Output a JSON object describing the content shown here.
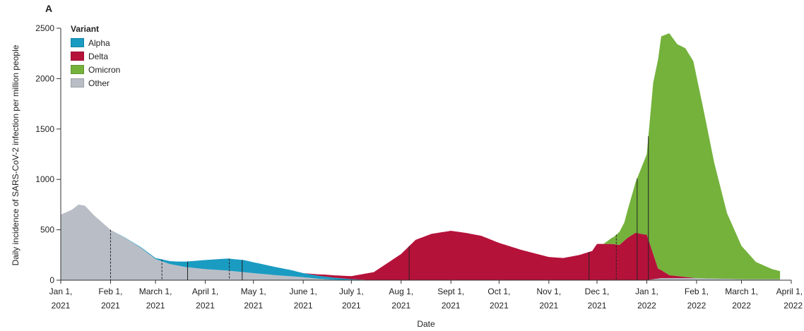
{
  "panel_label": "A",
  "chart_data": {
    "type": "area",
    "title": "",
    "xlabel": "Date",
    "ylabel": "Daily incidence of SARS-CoV-2 infection per million people",
    "ylim": [
      0,
      2500
    ],
    "yticks": [
      0,
      500,
      1000,
      1500,
      2000,
      2500
    ],
    "xlim": [
      "2021-01-01",
      "2022-04-01"
    ],
    "xticks": [
      {
        "date": "2021-01-01",
        "line1": "Jan 1,",
        "line2": "2021"
      },
      {
        "date": "2021-02-01",
        "line1": "Feb 1,",
        "line2": "2021"
      },
      {
        "date": "2021-03-01",
        "line1": "March 1,",
        "line2": "2021"
      },
      {
        "date": "2021-04-01",
        "line1": "April 1,",
        "line2": "2021"
      },
      {
        "date": "2021-05-01",
        "line1": "May 1,",
        "line2": "2021"
      },
      {
        "date": "2021-06-01",
        "line1": "June 1,",
        "line2": "2021"
      },
      {
        "date": "2021-07-01",
        "line1": "July 1,",
        "line2": "2021"
      },
      {
        "date": "2021-08-01",
        "line1": "Aug 1,",
        "line2": "2021"
      },
      {
        "date": "2021-09-01",
        "line1": "Sept 1,",
        "line2": "2021"
      },
      {
        "date": "2021-10-01",
        "line1": "Oct 1,",
        "line2": "2021"
      },
      {
        "date": "2021-11-01",
        "line1": "Nov 1,",
        "line2": "2021"
      },
      {
        "date": "2021-12-01",
        "line1": "Dec 1,",
        "line2": "2021"
      },
      {
        "date": "2022-01-01",
        "line1": "Jan 1,",
        "line2": "2022"
      },
      {
        "date": "2022-02-01",
        "line1": "Feb 1,",
        "line2": "2022"
      },
      {
        "date": "2022-03-01",
        "line1": "March 1,",
        "line2": "2022"
      },
      {
        "date": "2022-04-01",
        "line1": "April 1,",
        "line2": "2022"
      }
    ],
    "legend": {
      "title": "Variant",
      "placement": "top-left"
    },
    "series": [
      {
        "name": "Other",
        "color": "#b9bec6",
        "points": [
          [
            "2021-01-01",
            650
          ],
          [
            "2021-01-08",
            700
          ],
          [
            "2021-01-12",
            750
          ],
          [
            "2021-01-16",
            740
          ],
          [
            "2021-01-22",
            640
          ],
          [
            "2021-02-01",
            500
          ],
          [
            "2021-02-10",
            420
          ],
          [
            "2021-02-20",
            320
          ],
          [
            "2021-03-01",
            210
          ],
          [
            "2021-03-10",
            160
          ],
          [
            "2021-03-20",
            130
          ],
          [
            "2021-04-01",
            110
          ],
          [
            "2021-04-15",
            95
          ],
          [
            "2021-05-01",
            70
          ],
          [
            "2021-05-15",
            50
          ],
          [
            "2021-06-01",
            30
          ],
          [
            "2021-06-10",
            15
          ],
          [
            "2021-06-20",
            5
          ],
          [
            "2021-07-01",
            0
          ],
          [
            "2021-12-31",
            0
          ],
          [
            "2022-01-10",
            20
          ],
          [
            "2022-02-01",
            20
          ],
          [
            "2022-03-01",
            10
          ],
          [
            "2022-03-25",
            10
          ]
        ]
      },
      {
        "name": "Alpha",
        "color": "#1a9bc2",
        "points": [
          [
            "2021-01-01",
            0
          ],
          [
            "2021-02-01",
            0
          ],
          [
            "2021-02-15",
            5
          ],
          [
            "2021-03-01",
            10
          ],
          [
            "2021-03-15",
            40
          ],
          [
            "2021-04-01",
            90
          ],
          [
            "2021-04-15",
            120
          ],
          [
            "2021-04-25",
            120
          ],
          [
            "2021-05-10",
            90
          ],
          [
            "2021-05-25",
            60
          ],
          [
            "2021-06-01",
            40
          ],
          [
            "2021-06-15",
            25
          ],
          [
            "2021-07-01",
            10
          ],
          [
            "2021-07-15",
            0
          ],
          [
            "2022-03-25",
            0
          ]
        ]
      },
      {
        "name": "Delta",
        "color": "#b5123a",
        "points": [
          [
            "2021-01-01",
            0
          ],
          [
            "2021-06-01",
            0
          ],
          [
            "2021-06-15",
            20
          ],
          [
            "2021-07-01",
            30
          ],
          [
            "2021-07-15",
            80
          ],
          [
            "2021-08-01",
            260
          ],
          [
            "2021-08-10",
            400
          ],
          [
            "2021-08-20",
            460
          ],
          [
            "2021-09-01",
            490
          ],
          [
            "2021-09-10",
            470
          ],
          [
            "2021-09-20",
            440
          ],
          [
            "2021-10-01",
            370
          ],
          [
            "2021-10-15",
            300
          ],
          [
            "2021-11-01",
            230
          ],
          [
            "2021-11-10",
            220
          ],
          [
            "2021-11-20",
            250
          ],
          [
            "2021-11-28",
            290
          ],
          [
            "2021-12-01",
            360
          ],
          [
            "2021-12-10",
            360
          ],
          [
            "2021-12-15",
            350
          ],
          [
            "2021-12-20",
            420
          ],
          [
            "2021-12-25",
            470
          ],
          [
            "2022-01-01",
            450
          ],
          [
            "2022-01-08",
            100
          ],
          [
            "2022-01-15",
            30
          ],
          [
            "2022-02-01",
            0
          ],
          [
            "2022-03-25",
            0
          ]
        ]
      },
      {
        "name": "Omicron",
        "color": "#74b23c",
        "points": [
          [
            "2021-01-01",
            0
          ],
          [
            "2021-12-05",
            0
          ],
          [
            "2021-12-12",
            80
          ],
          [
            "2021-12-18",
            180
          ],
          [
            "2021-12-25",
            500
          ],
          [
            "2022-01-01",
            800
          ],
          [
            "2022-01-05",
            1700
          ],
          [
            "2022-01-10",
            2320
          ],
          [
            "2022-01-15",
            2400
          ],
          [
            "2022-01-20",
            2300
          ],
          [
            "2022-01-25",
            2270
          ],
          [
            "2022-01-30",
            2150
          ],
          [
            "2022-02-05",
            1700
          ],
          [
            "2022-02-12",
            1150
          ],
          [
            "2022-02-20",
            650
          ],
          [
            "2022-03-01",
            330
          ],
          [
            "2022-03-10",
            170
          ],
          [
            "2022-03-20",
            100
          ],
          [
            "2022-03-25",
            80
          ]
        ]
      }
    ],
    "vlines": [
      {
        "date": "2021-02-01",
        "style": "dashed"
      },
      {
        "date": "2021-03-05",
        "style": "dashed"
      },
      {
        "date": "2021-03-21",
        "style": "solid"
      },
      {
        "date": "2021-04-16",
        "style": "dashed"
      },
      {
        "date": "2021-04-24",
        "style": "solid"
      },
      {
        "date": "2021-08-06",
        "style": "solid"
      },
      {
        "date": "2021-11-26",
        "style": "solid"
      },
      {
        "date": "2021-12-13",
        "style": "dashed"
      },
      {
        "date": "2021-12-26",
        "style": "solid"
      },
      {
        "date": "2022-01-02",
        "style": "solid"
      }
    ]
  }
}
